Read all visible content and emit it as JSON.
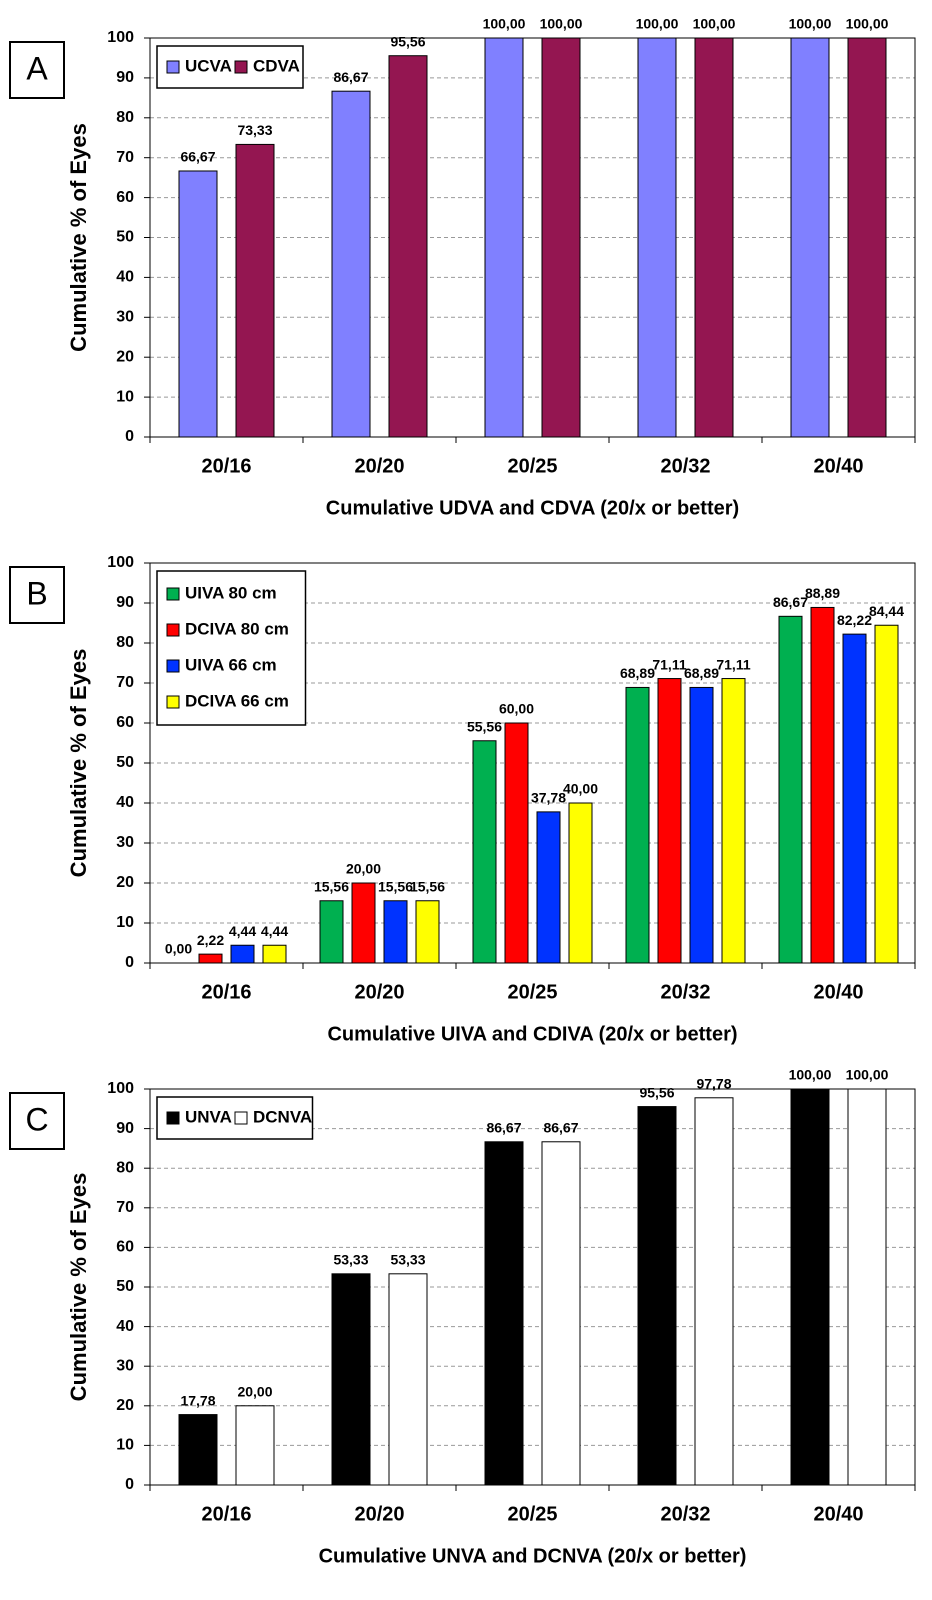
{
  "chart_data": [
    {
      "type": "bar",
      "panel_label": "A",
      "y_label": "Cumulative % of Eyes",
      "x_label": "Cumulative UDVA and CDVA (20/x or better)",
      "categories": [
        "20/16",
        "20/20",
        "20/25",
        "20/32",
        "20/40"
      ],
      "series": [
        {
          "name": "UCVA",
          "color": "#8080ff",
          "values": [
            66.67,
            86.67,
            100,
            100,
            100
          ],
          "value_labels": [
            "66,67",
            "86,67",
            "100,00",
            "100,00",
            "100,00"
          ]
        },
        {
          "name": "CDVA",
          "color": "#941651",
          "values": [
            73.33,
            95.56,
            100,
            100,
            100
          ],
          "value_labels": [
            "73,33",
            "95,56",
            "100,00",
            "100,00",
            "100,00"
          ]
        }
      ],
      "ylim": [
        0,
        100
      ],
      "yticks": [
        0,
        10,
        20,
        30,
        40,
        50,
        60,
        70,
        80,
        90,
        100
      ],
      "grid": true,
      "legend": "upper left"
    },
    {
      "type": "bar",
      "panel_label": "B",
      "y_label": "Cumulative % of Eyes",
      "x_label": "Cumulative UIVA and CDIVA (20/x or better)",
      "categories": [
        "20/16",
        "20/20",
        "20/25",
        "20/32",
        "20/40"
      ],
      "series": [
        {
          "name": "UIVA 80 cm",
          "color": "#00b050",
          "values": [
            0,
            15.56,
            55.56,
            68.89,
            86.67
          ],
          "value_labels": [
            "0,00",
            "15,56",
            "55,56",
            "68,89",
            "86,67"
          ]
        },
        {
          "name": "DCIVA 80 cm",
          "color": "#ff0000",
          "values": [
            2.22,
            20,
            60,
            71.11,
            88.89
          ],
          "value_labels": [
            "2,22",
            "20,00",
            "60,00",
            "71,11",
            "88,89"
          ]
        },
        {
          "name": "UIVA 66 cm",
          "color": "#0033ff",
          "values": [
            4.44,
            15.56,
            37.78,
            68.89,
            82.22
          ],
          "value_labels": [
            "4,44",
            "15,56",
            "37,78",
            "68,89",
            "82,22"
          ]
        },
        {
          "name": "DCIVA 66 cm",
          "color": "#ffff00",
          "values": [
            4.44,
            15.56,
            40,
            71.11,
            84.44
          ],
          "value_labels": [
            "4,44",
            "15,56",
            "40,00",
            "71,11",
            "84,44"
          ]
        }
      ],
      "ylim": [
        0,
        100
      ],
      "yticks": [
        0,
        10,
        20,
        30,
        40,
        50,
        60,
        70,
        80,
        90,
        100
      ],
      "grid": true,
      "legend": "upper left"
    },
    {
      "type": "bar",
      "panel_label": "C",
      "y_label": "Cumulative % of Eyes",
      "x_label": "Cumulative UNVA and DCNVA (20/x or better)",
      "categories": [
        "20/16",
        "20/20",
        "20/25",
        "20/32",
        "20/40"
      ],
      "series": [
        {
          "name": "UNVA",
          "color": "#000000",
          "values": [
            17.78,
            53.33,
            86.67,
            95.56,
            100
          ],
          "value_labels": [
            "17,78",
            "53,33",
            "86,67",
            "95,56",
            "100,00"
          ]
        },
        {
          "name": "DCNVA",
          "color": "#ffffff",
          "values": [
            20,
            53.33,
            86.67,
            97.78,
            100
          ],
          "value_labels": [
            "20,00",
            "53,33",
            "86,67",
            "97,78",
            "100,00"
          ]
        }
      ],
      "ylim": [
        0,
        100
      ],
      "yticks": [
        0,
        10,
        20,
        30,
        40,
        50,
        60,
        70,
        80,
        90,
        100
      ],
      "grid": true,
      "legend": "upper left"
    }
  ]
}
